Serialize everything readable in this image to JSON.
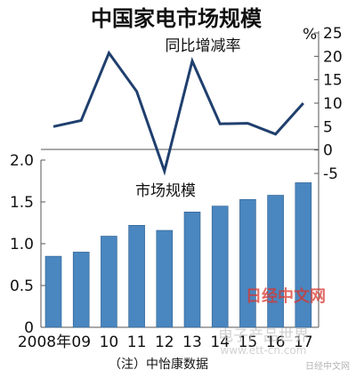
{
  "chart_data": [
    {
      "type": "line",
      "title": "中国家电市场规模",
      "series_label": "同比增减率",
      "unit": "%",
      "x": [
        "2008年",
        "09",
        "10",
        "11",
        "12",
        "13",
        "14",
        "15",
        "16",
        "17"
      ],
      "values": [
        5,
        6.3,
        20.7,
        12.5,
        -4.5,
        19,
        5.6,
        5.7,
        3.4,
        10
      ],
      "yticks": [
        "25",
        "20",
        "15",
        "10",
        "5",
        "0",
        "-5"
      ],
      "ylim": [
        -5,
        25
      ],
      "color": "#1f3f6e"
    },
    {
      "type": "bar",
      "series_label": "市场规模",
      "categories": [
        "2008年",
        "09",
        "10",
        "11",
        "12",
        "13",
        "14",
        "15",
        "16",
        "17"
      ],
      "values": [
        0.85,
        0.9,
        1.09,
        1.22,
        1.16,
        1.38,
        1.45,
        1.53,
        1.58,
        1.73
      ],
      "yticks": [
        "2.0",
        "1.5",
        "1.0",
        "0.5",
        "0"
      ],
      "ylim": [
        0,
        2.0
      ],
      "color": "#4a86bf",
      "grid": false
    }
  ],
  "source_note": "（注）中怡康数据",
  "watermarks": {
    "brand": "日经中文网",
    "site_cn": "电子产品世界",
    "site_url": "www.ett-cn.com",
    "weibo": "日经中文网"
  },
  "colors": {
    "background": "#ffffff",
    "axis": "#555555",
    "brand_red": "#d7372f"
  }
}
